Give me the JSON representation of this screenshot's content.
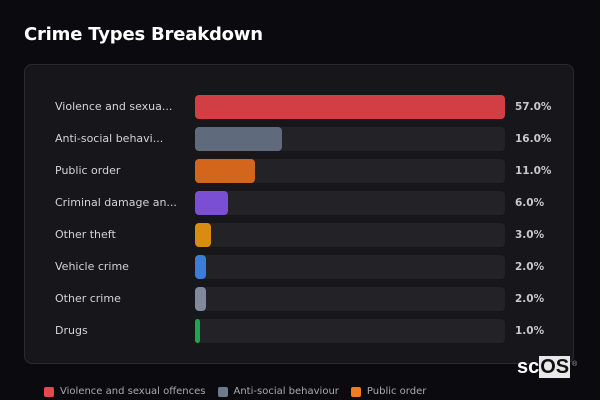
{
  "title": "Crime Types Breakdown",
  "chart_data": {
    "type": "bar",
    "orientation": "horizontal",
    "title": "Crime Types Breakdown",
    "categories": [
      "Violence and sexual offences",
      "Anti-social behaviour",
      "Public order",
      "Criminal damage and arson",
      "Other theft",
      "Vehicle crime",
      "Other crime",
      "Drugs"
    ],
    "display_labels": [
      "Violence and sexua...",
      "Anti-social behavi...",
      "Public order",
      "Criminal damage an...",
      "Other theft",
      "Vehicle crime",
      "Other crime",
      "Drugs"
    ],
    "values": [
      57.0,
      16.0,
      11.0,
      6.0,
      3.0,
      2.0,
      2.0,
      1.0
    ],
    "value_labels": [
      "57.0%",
      "16.0%",
      "11.0%",
      "6.0%",
      "3.0%",
      "2.0%",
      "2.0%",
      "1.0%"
    ],
    "colors": [
      "#d13f44",
      "#5f6b7d",
      "#d4661c",
      "#7b4fd4",
      "#d98b12",
      "#3b7dd8",
      "#808a9c",
      "#1fa653"
    ],
    "xlim": [
      0,
      57
    ],
    "grid": false,
    "legend_position": "bottom"
  },
  "legend": [
    {
      "label": "Violence and sexual offences",
      "color": "#e5484d"
    },
    {
      "label": "Anti-social behaviour",
      "color": "#6b7a90"
    },
    {
      "label": "Public order",
      "color": "#f07c1e"
    }
  ],
  "brand": {
    "prefix": "sc",
    "highlight": "OS",
    "reg": "®"
  }
}
